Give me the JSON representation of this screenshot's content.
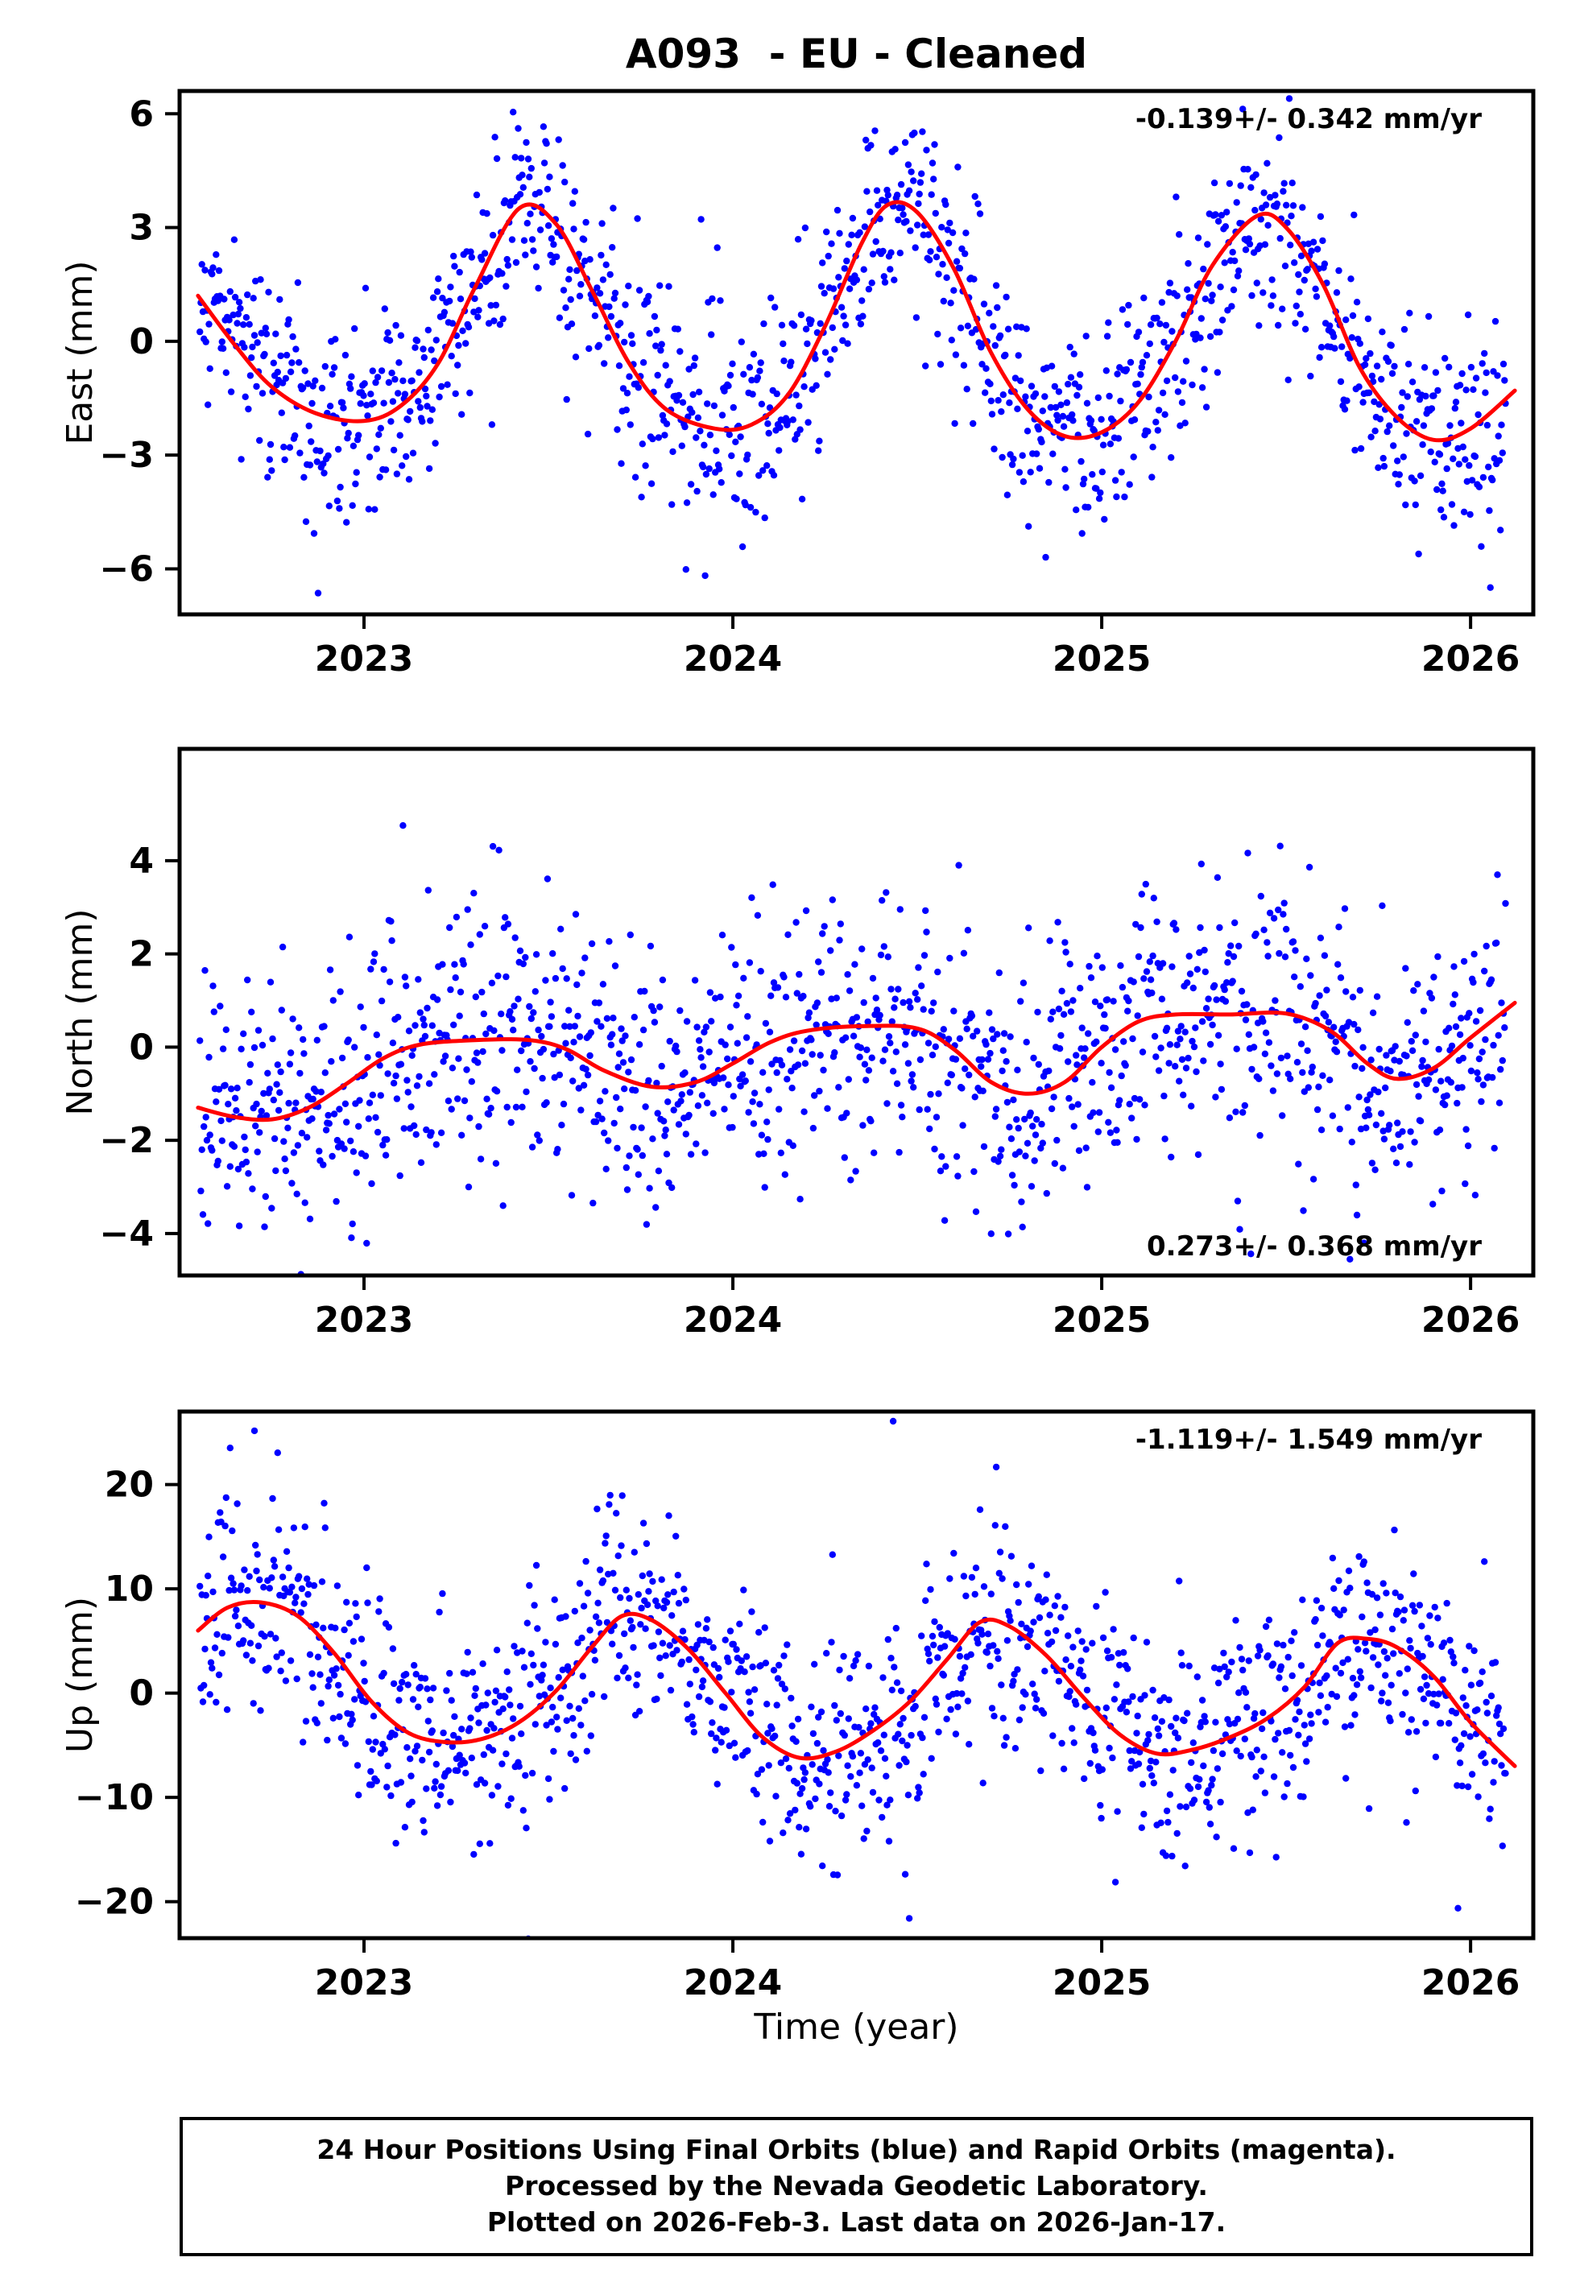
{
  "title": "A093  - EU - Cleaned",
  "xlabel": "Time (year)",
  "footer": {
    "line1": "24 Hour Positions Using Final Orbits (blue) and Rapid Orbits (magenta).",
    "line2": "Processed by the Nevada Geodetic Laboratory.",
    "line3": "Plotted on 2026-Feb-3. Last data on 2026-Jan-17."
  },
  "colors": {
    "points": "#0000ff",
    "fit": "#ff0000",
    "frame": "#000000"
  },
  "chart_data": [
    {
      "type": "scatter",
      "name": "east",
      "ylabel": "East (mm)",
      "annotation": "-0.139+/- 0.342 mm/yr",
      "annotation_corner": "top-right",
      "xlim": [
        2022.5,
        2026.17
      ],
      "xticks": [
        2023,
        2024,
        2025,
        2026
      ],
      "ylim": [
        -7.2,
        6.6
      ],
      "yticks": [
        -6,
        -3,
        0,
        3,
        6
      ],
      "fit_curve": [
        [
          2022.55,
          1.2
        ],
        [
          2022.65,
          -0.1
        ],
        [
          2022.75,
          -1.2
        ],
        [
          2022.87,
          -1.9
        ],
        [
          2023.0,
          -2.1
        ],
        [
          2023.1,
          -1.7
        ],
        [
          2023.2,
          -0.6
        ],
        [
          2023.3,
          1.4
        ],
        [
          2023.42,
          3.5
        ],
        [
          2023.52,
          3.1
        ],
        [
          2023.62,
          1.3
        ],
        [
          2023.72,
          -0.6
        ],
        [
          2023.82,
          -1.8
        ],
        [
          2023.95,
          -2.3
        ],
        [
          2024.05,
          -2.2
        ],
        [
          2024.15,
          -1.4
        ],
        [
          2024.25,
          0.4
        ],
        [
          2024.35,
          2.6
        ],
        [
          2024.42,
          3.6
        ],
        [
          2024.5,
          3.4
        ],
        [
          2024.6,
          1.9
        ],
        [
          2024.7,
          -0.3
        ],
        [
          2024.8,
          -1.8
        ],
        [
          2024.9,
          -2.5
        ],
        [
          2025.0,
          -2.4
        ],
        [
          2025.1,
          -1.6
        ],
        [
          2025.2,
          0.0
        ],
        [
          2025.3,
          2.0
        ],
        [
          2025.42,
          3.3
        ],
        [
          2025.5,
          3.0
        ],
        [
          2025.6,
          1.5
        ],
        [
          2025.7,
          -0.7
        ],
        [
          2025.8,
          -2.0
        ],
        [
          2025.9,
          -2.6
        ],
        [
          2026.0,
          -2.3
        ],
        [
          2026.12,
          -1.3
        ]
      ],
      "scatter_model": {
        "x_start": 2022.555,
        "x_end": 2026.095,
        "points_per_year": 365,
        "noise_sd": 1.3,
        "outlier_rate": 0.06,
        "outlier_sd": 2.4,
        "seed": 13
      }
    },
    {
      "type": "scatter",
      "name": "north",
      "ylabel": "North (mm)",
      "annotation": "0.273+/- 0.368 mm/yr",
      "annotation_corner": "bottom-right",
      "xlim": [
        2022.5,
        2026.17
      ],
      "xticks": [
        2023,
        2024,
        2025,
        2026
      ],
      "ylim": [
        -4.9,
        6.4
      ],
      "yticks": [
        -4,
        -2,
        0,
        2,
        4
      ],
      "fit_curve": [
        [
          2022.55,
          -1.3
        ],
        [
          2022.65,
          -1.5
        ],
        [
          2022.75,
          -1.55
        ],
        [
          2022.85,
          -1.3
        ],
        [
          2022.95,
          -0.8
        ],
        [
          2023.05,
          -0.25
        ],
        [
          2023.15,
          0.05
        ],
        [
          2023.3,
          0.15
        ],
        [
          2023.45,
          0.15
        ],
        [
          2023.55,
          -0.05
        ],
        [
          2023.65,
          -0.5
        ],
        [
          2023.78,
          -0.85
        ],
        [
          2023.9,
          -0.75
        ],
        [
          2024.0,
          -0.35
        ],
        [
          2024.1,
          0.1
        ],
        [
          2024.2,
          0.35
        ],
        [
          2024.35,
          0.45
        ],
        [
          2024.5,
          0.4
        ],
        [
          2024.6,
          -0.05
        ],
        [
          2024.7,
          -0.75
        ],
        [
          2024.8,
          -1.0
        ],
        [
          2024.9,
          -0.75
        ],
        [
          2025.0,
          0.0
        ],
        [
          2025.1,
          0.55
        ],
        [
          2025.2,
          0.7
        ],
        [
          2025.35,
          0.7
        ],
        [
          2025.5,
          0.72
        ],
        [
          2025.62,
          0.35
        ],
        [
          2025.72,
          -0.35
        ],
        [
          2025.8,
          -0.68
        ],
        [
          2025.9,
          -0.45
        ],
        [
          2026.0,
          0.2
        ],
        [
          2026.12,
          0.95
        ]
      ],
      "scatter_model": {
        "x_start": 2022.555,
        "x_end": 2026.095,
        "points_per_year": 365,
        "noise_sd": 1.4,
        "outlier_rate": 0.05,
        "outlier_sd": 2.0,
        "seed": 29
      }
    },
    {
      "type": "scatter",
      "name": "up",
      "ylabel": "Up (mm)",
      "annotation": "-1.119+/- 1.549 mm/yr",
      "annotation_corner": "top-right",
      "xlim": [
        2022.5,
        2026.17
      ],
      "xticks": [
        2023,
        2024,
        2025,
        2026
      ],
      "ylim": [
        -23.5,
        27
      ],
      "yticks": [
        -20,
        -10,
        0,
        10,
        20
      ],
      "fit_curve": [
        [
          2022.55,
          6.0
        ],
        [
          2022.63,
          8.2
        ],
        [
          2022.72,
          8.7
        ],
        [
          2022.82,
          7.4
        ],
        [
          2022.92,
          3.8
        ],
        [
          2023.02,
          -0.8
        ],
        [
          2023.12,
          -3.8
        ],
        [
          2023.22,
          -4.7
        ],
        [
          2023.32,
          -4.4
        ],
        [
          2023.42,
          -2.8
        ],
        [
          2023.52,
          0.2
        ],
        [
          2023.62,
          4.5
        ],
        [
          2023.7,
          7.4
        ],
        [
          2023.78,
          7.0
        ],
        [
          2023.88,
          4.2
        ],
        [
          2023.98,
          0.0
        ],
        [
          2024.08,
          -4.2
        ],
        [
          2024.18,
          -6.2
        ],
        [
          2024.28,
          -5.6
        ],
        [
          2024.38,
          -3.6
        ],
        [
          2024.48,
          -0.8
        ],
        [
          2024.58,
          3.2
        ],
        [
          2024.67,
          6.8
        ],
        [
          2024.75,
          6.4
        ],
        [
          2024.85,
          3.6
        ],
        [
          2024.95,
          -0.4
        ],
        [
          2025.05,
          -4.0
        ],
        [
          2025.15,
          -5.8
        ],
        [
          2025.25,
          -5.4
        ],
        [
          2025.35,
          -4.2
        ],
        [
          2025.45,
          -2.4
        ],
        [
          2025.55,
          0.6
        ],
        [
          2025.64,
          4.8
        ],
        [
          2025.72,
          5.2
        ],
        [
          2025.8,
          4.4
        ],
        [
          2025.9,
          1.6
        ],
        [
          2026.0,
          -2.8
        ],
        [
          2026.12,
          -7.0
        ]
      ],
      "scatter_model": {
        "x_start": 2022.555,
        "x_end": 2026.095,
        "points_per_year": 365,
        "noise_sd": 5.2,
        "outlier_rate": 0.06,
        "outlier_sd": 9.0,
        "seed": 47
      }
    }
  ]
}
